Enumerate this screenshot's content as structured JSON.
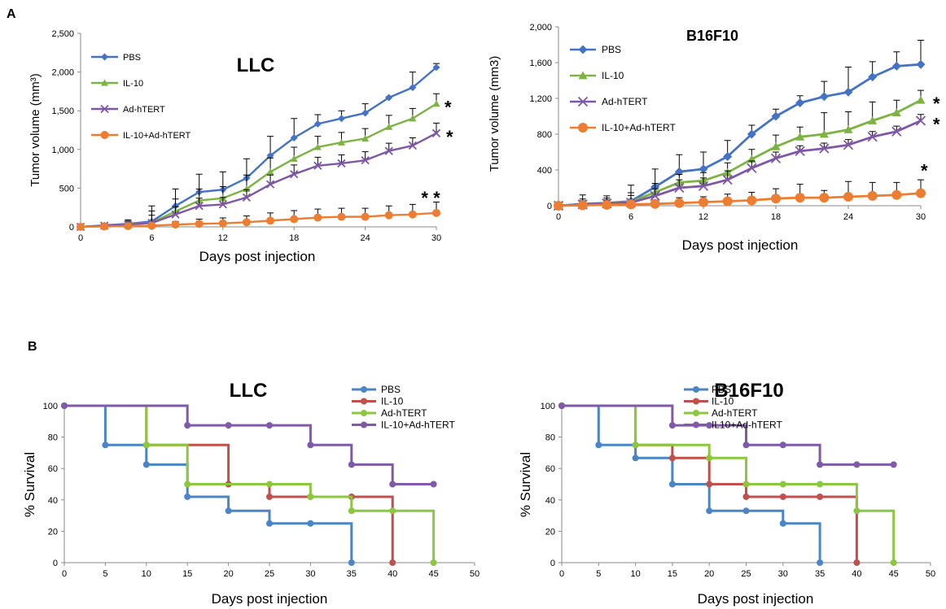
{
  "panel_labels": {
    "a": "A",
    "b": "B"
  },
  "chart_data": [
    {
      "type": "line",
      "panel": "A",
      "title": "LLC",
      "xlabel": "Days post injection",
      "ylabel": "Tumor volume (mm³)",
      "xlim": [
        0,
        30
      ],
      "ylim": [
        0,
        2500
      ],
      "xticks": [
        0,
        6,
        12,
        18,
        24,
        30
      ],
      "yticks": [
        0,
        500,
        1000,
        1500,
        2000,
        2500
      ],
      "ytick_labels": [
        "0",
        "500",
        "1,000",
        "1,500",
        "2,000",
        "2,500"
      ],
      "grid": false,
      "legend": "top-left",
      "x": [
        0,
        2,
        4,
        6,
        8,
        10,
        12,
        14,
        16,
        18,
        20,
        22,
        24,
        26,
        28,
        30
      ],
      "series": [
        {
          "name": "PBS",
          "color": "#4472C4",
          "marker": "diamond",
          "values": [
            0,
            20,
            40,
            70,
            270,
            450,
            480,
            630,
            920,
            1150,
            1330,
            1400,
            1470,
            1670,
            1800,
            2060
          ],
          "errors": [
            0,
            20,
            50,
            200,
            220,
            230,
            230,
            250,
            250,
            250,
            120,
            100,
            120,
            10,
            200,
            50
          ]
        },
        {
          "name": "IL-10",
          "color": "#7CB342",
          "marker": "triangle",
          "values": [
            0,
            15,
            35,
            55,
            200,
            340,
            370,
            490,
            710,
            880,
            1030,
            1090,
            1140,
            1290,
            1400,
            1590
          ],
          "errors": [
            0,
            20,
            40,
            150,
            160,
            150,
            150,
            180,
            180,
            150,
            140,
            130,
            130,
            150,
            130,
            130
          ]
        },
        {
          "name": "Ad-hTERT",
          "color": "#7E57A6",
          "marker": "x",
          "values": [
            0,
            15,
            30,
            50,
            160,
            270,
            290,
            380,
            550,
            680,
            790,
            820,
            860,
            980,
            1050,
            1210
          ],
          "errors": [
            0,
            20,
            30,
            100,
            100,
            100,
            90,
            100,
            120,
            120,
            110,
            110,
            110,
            100,
            100,
            130
          ]
        },
        {
          "name": "IL-10+Ad-hTERT",
          "color": "#ED7D31",
          "marker": "circle",
          "values": [
            0,
            5,
            10,
            15,
            30,
            40,
            45,
            60,
            80,
            100,
            120,
            130,
            130,
            150,
            160,
            180
          ],
          "errors": [
            0,
            10,
            10,
            20,
            40,
            60,
            70,
            80,
            100,
            110,
            110,
            110,
            110,
            120,
            130,
            140
          ]
        }
      ],
      "annotations": [
        {
          "text": "*",
          "x": 30,
          "y": 1590
        },
        {
          "text": "*",
          "x": 30,
          "y": 1210
        },
        {
          "text": "* *",
          "x": 29,
          "y": 420
        }
      ]
    },
    {
      "type": "line",
      "panel": "A",
      "title": "B16F10",
      "xlabel": "Days post injection",
      "ylabel": "Tumor volume (mm3)",
      "xlim": [
        0,
        30
      ],
      "ylim": [
        0,
        2000
      ],
      "xticks": [
        0,
        6,
        12,
        18,
        24,
        30
      ],
      "yticks": [
        0,
        400,
        800,
        1200,
        1600,
        2000
      ],
      "ytick_labels": [
        "0",
        "400",
        "800",
        "1,200",
        "1,600",
        "2,000"
      ],
      "grid": false,
      "legend": "top-left",
      "x": [
        0,
        2,
        4,
        6,
        8,
        10,
        12,
        14,
        16,
        18,
        20,
        22,
        24,
        26,
        28,
        30
      ],
      "series": [
        {
          "name": "PBS",
          "color": "#4472C4",
          "marker": "diamond",
          "values": [
            0,
            20,
            30,
            50,
            210,
            380,
            410,
            550,
            800,
            1000,
            1150,
            1220,
            1270,
            1440,
            1560,
            1580
          ],
          "errors": [
            0,
            100,
            80,
            180,
            200,
            190,
            190,
            180,
            100,
            80,
            80,
            170,
            280,
            170,
            160,
            270
          ]
        },
        {
          "name": "IL-10",
          "color": "#7CB342",
          "marker": "triangle",
          "values": [
            0,
            15,
            25,
            45,
            150,
            260,
            280,
            370,
            520,
            660,
            770,
            800,
            850,
            950,
            1040,
            1180
          ],
          "errors": [
            0,
            60,
            60,
            100,
            100,
            90,
            90,
            110,
            110,
            130,
            110,
            240,
            200,
            210,
            140,
            110
          ]
        },
        {
          "name": "Ad-hTERT",
          "color": "#7E57A6",
          "marker": "x",
          "values": [
            0,
            15,
            25,
            35,
            110,
            200,
            220,
            290,
            420,
            530,
            610,
            640,
            680,
            770,
            830,
            950
          ],
          "errors": [
            0,
            40,
            40,
            80,
            80,
            90,
            90,
            100,
            80,
            70,
            60,
            60,
            60,
            60,
            60,
            70
          ]
        },
        {
          "name": "IL-10+Ad-hTERT",
          "color": "#ED7D31",
          "marker": "circle",
          "values": [
            0,
            5,
            10,
            15,
            20,
            30,
            40,
            50,
            60,
            80,
            90,
            90,
            100,
            110,
            120,
            140
          ],
          "errors": [
            0,
            20,
            20,
            30,
            40,
            60,
            60,
            80,
            90,
            110,
            150,
            80,
            170,
            150,
            140,
            150
          ]
        }
      ],
      "annotations": [
        {
          "text": "*",
          "x": 30,
          "y": 1180
        },
        {
          "text": "*",
          "x": 30,
          "y": 950
        },
        {
          "text": "*",
          "x": 30,
          "y": 430
        }
      ]
    },
    {
      "type": "line",
      "panel": "B",
      "step": true,
      "title": "LLC",
      "xlabel": "Days post injection",
      "ylabel": "% Survival",
      "xlim": [
        0,
        50
      ],
      "ylim": [
        0,
        100
      ],
      "xticks": [
        0,
        5,
        10,
        15,
        20,
        25,
        30,
        35,
        40,
        45,
        50
      ],
      "yticks": [
        0,
        20,
        40,
        60,
        80,
        100
      ],
      "grid": false,
      "legend": "top-right",
      "series": [
        {
          "name": "PBS",
          "color": "#4A86C5",
          "x": [
            0,
            5,
            10,
            15,
            20,
            25,
            30,
            35
          ],
          "values": [
            100,
            75,
            62.5,
            42,
            33,
            25,
            25,
            0
          ]
        },
        {
          "name": "IL-10",
          "color": "#C0504D",
          "x": [
            0,
            10,
            20,
            25,
            30,
            35,
            40
          ],
          "values": [
            100,
            75,
            50,
            42,
            42,
            42,
            0
          ]
        },
        {
          "name": "Ad-hTERT",
          "color": "#8DC63F",
          "x": [
            0,
            10,
            15,
            25,
            30,
            35,
            40,
            45
          ],
          "values": [
            100,
            75,
            50,
            50,
            42,
            33,
            33,
            0
          ]
        },
        {
          "name": "IL-10+Ad-hTERT",
          "color": "#7F5AA8",
          "x": [
            0,
            15,
            20,
            25,
            30,
            35,
            40,
            45
          ],
          "values": [
            100,
            87.5,
            87.5,
            87.5,
            75,
            62.5,
            50,
            50
          ]
        }
      ]
    },
    {
      "type": "line",
      "panel": "B",
      "step": true,
      "title": "B16F10",
      "xlabel": "Days post injection",
      "ylabel": "% Survival",
      "xlim": [
        0,
        50
      ],
      "ylim": [
        0,
        100
      ],
      "xticks": [
        0,
        5,
        10,
        15,
        20,
        25,
        30,
        35,
        40,
        45,
        50
      ],
      "yticks": [
        0,
        20,
        40,
        60,
        80,
        100
      ],
      "grid": false,
      "legend": "top-right",
      "series": [
        {
          "name": "PBS",
          "color": "#4A86C5",
          "x": [
            0,
            5,
            10,
            15,
            20,
            25,
            30,
            35
          ],
          "values": [
            100,
            75,
            66.7,
            50,
            33,
            33,
            25,
            0
          ]
        },
        {
          "name": "IL-10",
          "color": "#C0504D",
          "x": [
            0,
            10,
            15,
            20,
            25,
            30,
            35,
            40
          ],
          "values": [
            100,
            75,
            66.7,
            50,
            42,
            42,
            42,
            0
          ]
        },
        {
          "name": "Ad-hTERT",
          "color": "#8DC63F",
          "x": [
            0,
            10,
            20,
            25,
            30,
            35,
            40,
            45
          ],
          "values": [
            100,
            75,
            66.7,
            50,
            50,
            50,
            33,
            0
          ]
        },
        {
          "name": "IL10+Ad-hTERT",
          "color": "#7F5AA8",
          "x": [
            0,
            15,
            20,
            25,
            30,
            35,
            40,
            45
          ],
          "values": [
            100,
            87.5,
            87.5,
            75,
            75,
            62.5,
            62.5,
            62.5
          ]
        }
      ]
    }
  ]
}
